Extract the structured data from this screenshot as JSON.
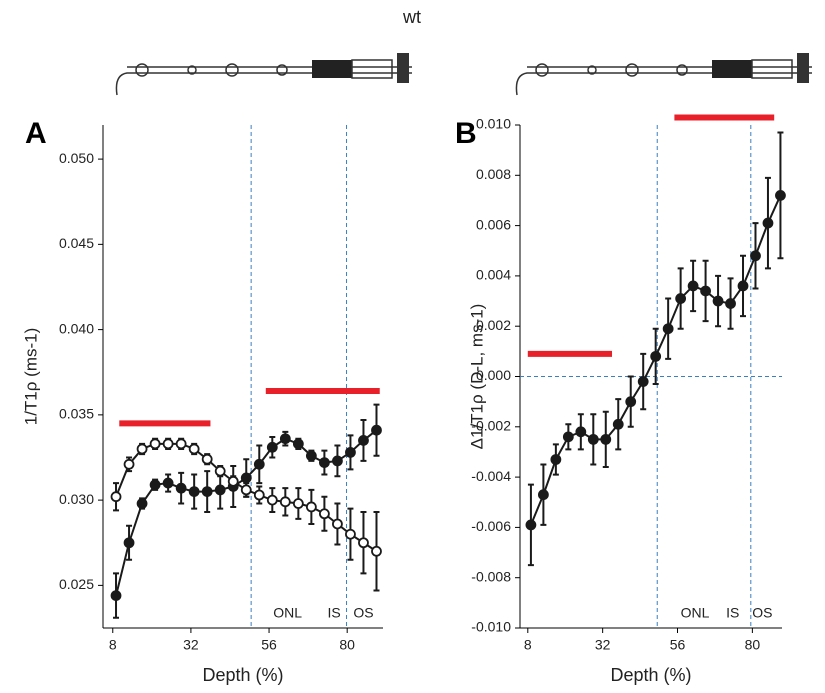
{
  "title": "wt",
  "chart_data": [
    {
      "type": "line",
      "panel": "A",
      "ylabel": "1/T1ρ (ms-1)",
      "xlabel": "Depth (%)",
      "x": [
        9,
        13,
        17,
        21,
        25,
        29,
        33,
        37,
        41,
        45,
        49,
        53,
        57,
        61,
        65,
        69,
        73,
        77,
        81,
        85,
        89
      ],
      "series": [
        {
          "marker": "filled",
          "color": "#1a1a1a",
          "values": [
            0.0244,
            0.0275,
            0.0298,
            0.0309,
            0.031,
            0.0307,
            0.0305,
            0.0305,
            0.0306,
            0.0308,
            0.0313,
            0.0321,
            0.0331,
            0.0336,
            0.0333,
            0.0326,
            0.0322,
            0.0323,
            0.0328,
            0.0335,
            0.0341
          ],
          "errors": [
            0.0013,
            0.001,
            0.0003,
            0.0003,
            0.0005,
            0.0009,
            0.001,
            0.0012,
            0.0011,
            0.0012,
            0.0011,
            0.0011,
            0.0006,
            0.0004,
            0.0003,
            0.0003,
            0.0007,
            0.0009,
            0.001,
            0.0012,
            0.0015
          ]
        },
        {
          "marker": "open",
          "color": "#1a1a1a",
          "values": [
            0.0302,
            0.0321,
            0.033,
            0.0333,
            0.0333,
            0.0333,
            0.033,
            0.0324,
            0.0317,
            0.0311,
            0.0306,
            0.0303,
            0.03,
            0.0299,
            0.0298,
            0.0296,
            0.0292,
            0.0286,
            0.028,
            0.0275,
            0.027
          ],
          "errors": [
            0.0008,
            0.0004,
            0.0003,
            0.0003,
            0.0003,
            0.0003,
            0.0003,
            0.0003,
            0.0003,
            0.0003,
            0.0004,
            0.0005,
            0.0007,
            0.0008,
            0.0009,
            0.001,
            0.001,
            0.0012,
            0.0015,
            0.0018,
            0.0023
          ]
        }
      ],
      "xlim": [
        5,
        91
      ],
      "xticks": [
        8,
        32,
        56,
        80
      ],
      "ylim": [
        0.0225,
        0.052
      ],
      "yticks": [
        0.025,
        {
          "value": 0.03,
          "label": "0.030"
        },
        0.035,
        {
          "value": 0.04,
          "label": "0.040"
        },
        0.045,
        {
          "value": 0.05,
          "label": "0.050"
        }
      ],
      "vlines": [
        50.5,
        79.8
      ],
      "hlines": [],
      "ref_color": "#3a7fc1",
      "sig_bars": [
        {
          "x": [
            10,
            38
          ],
          "y": 0.0345
        },
        {
          "x": [
            55,
            90
          ],
          "y": 0.0364
        }
      ],
      "sig_color": "#e8202a",
      "annotations": [
        {
          "text": "ONL",
          "x": 61.7
        },
        {
          "text": "IS",
          "x": 76
        },
        {
          "text": "OS",
          "x": 85
        }
      ]
    },
    {
      "type": "line",
      "panel": "B",
      "ylabel": "Δ1/T1ρ (D-L, ms-1)",
      "xlabel": "Depth (%)",
      "x": [
        9,
        13,
        17,
        21,
        25,
        29,
        33,
        37,
        41,
        45,
        49,
        53,
        57,
        61,
        65,
        69,
        73,
        77,
        81,
        85,
        89
      ],
      "series": [
        {
          "marker": "filled",
          "color": "#1a1a1a",
          "values": [
            -0.0059,
            -0.0047,
            -0.0033,
            -0.0024,
            -0.0022,
            -0.0025,
            -0.0025,
            -0.0019,
            -0.001,
            -0.0002,
            0.0008,
            0.0019,
            0.0031,
            0.0036,
            0.0034,
            0.003,
            0.0029,
            0.0036,
            0.0048,
            0.0061,
            0.0072
          ],
          "errors": [
            0.0016,
            0.0012,
            0.0006,
            0.0005,
            0.0007,
            0.001,
            0.0011,
            0.001,
            0.001,
            0.0011,
            0.0011,
            0.0012,
            0.0012,
            0.001,
            0.0012,
            0.001,
            0.001,
            0.0012,
            0.0013,
            0.0018,
            0.0025
          ]
        }
      ],
      "xlim": [
        5.5,
        89.5
      ],
      "xticks": [
        8,
        32,
        56,
        80
      ],
      "ylim": [
        -0.01,
        0.01
      ],
      "yticks": [
        {
          "value": -0.01,
          "label": "-0.010"
        },
        -0.008,
        -0.006,
        -0.004,
        -0.002,
        {
          "value": 0,
          "label": "0.000"
        },
        0.002,
        0.004,
        0.006,
        0.008,
        {
          "value": 0.01,
          "label": "0.010"
        }
      ],
      "vlines": [
        49.5,
        79.5
      ],
      "hlines": [
        0
      ],
      "ref_color": "#3a7fc1",
      "sig_bars": [
        {
          "x": [
            8,
            35
          ],
          "y": 0.0009
        },
        {
          "x": [
            55,
            87
          ],
          "y": 0.0103
        }
      ],
      "sig_color": "#e8202a",
      "annotations": [
        {
          "text": "ONL",
          "x": 61.6
        },
        {
          "text": "IS",
          "x": 73.7
        },
        {
          "text": "OS",
          "x": 83.2
        }
      ]
    }
  ]
}
